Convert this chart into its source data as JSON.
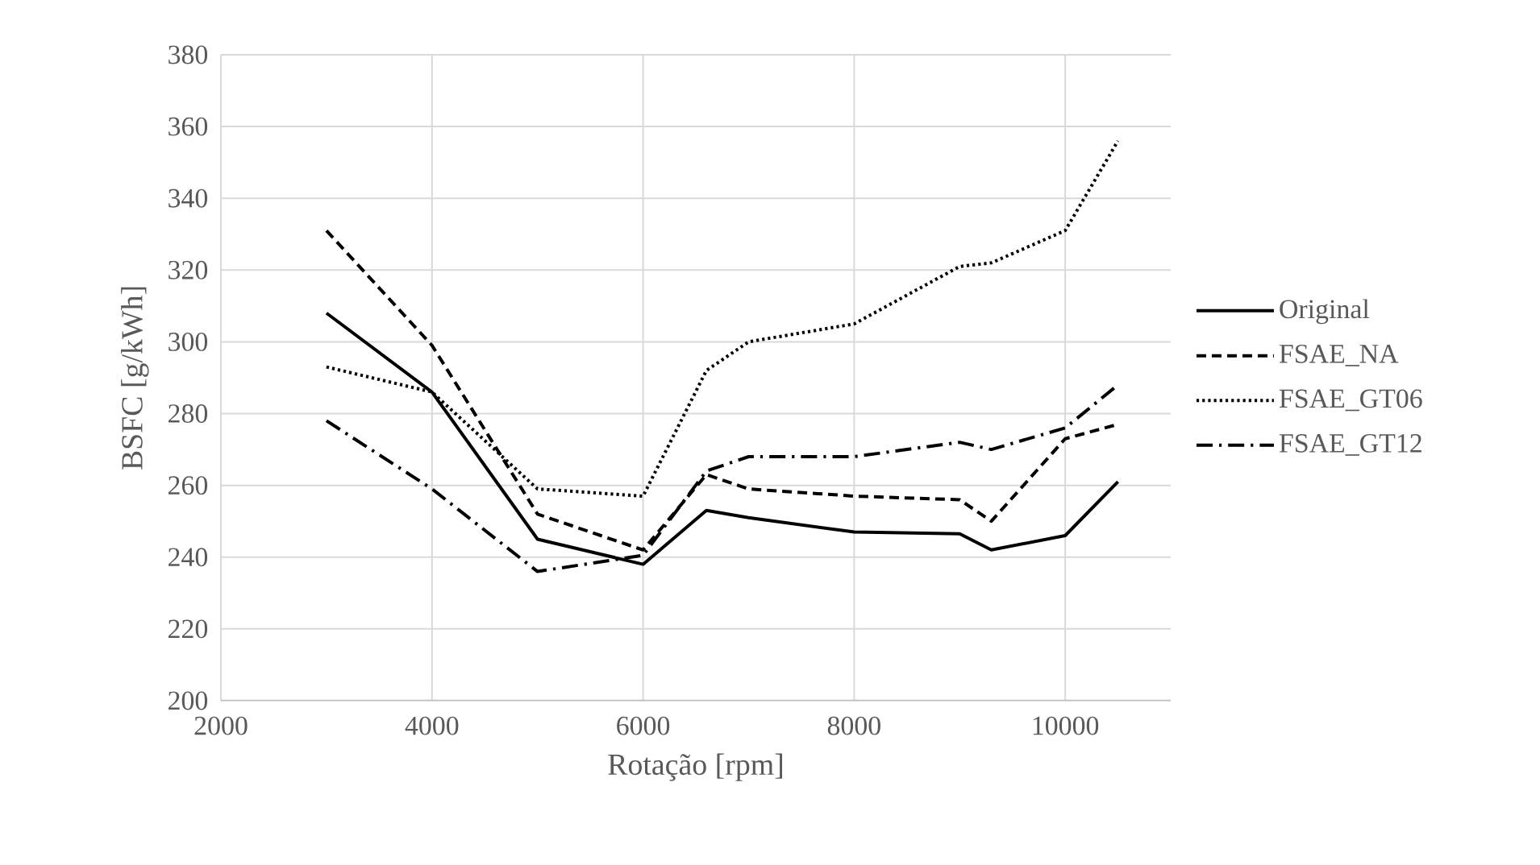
{
  "chart_data": {
    "type": "line",
    "xlabel": "Rotação [rpm]",
    "ylabel": "BSFC [g/kWh]",
    "x": [
      3000,
      4000,
      5000,
      6000,
      6600,
      7000,
      8000,
      9000,
      9300,
      10000,
      10500
    ],
    "series": [
      {
        "name": "Original",
        "color": "#000000",
        "line_style": "solid",
        "values": [
          308,
          286,
          245,
          238,
          253,
          251,
          247,
          246.5,
          242,
          246,
          261
        ]
      },
      {
        "name": "FSAE_NA",
        "color": "#000000",
        "line_style": "dashed",
        "values": [
          331,
          299,
          252,
          242,
          263,
          259,
          257,
          256,
          250,
          273,
          277
        ]
      },
      {
        "name": "FSAE_GT06",
        "color": "#000000",
        "line_style": "dotted",
        "values": [
          293,
          286,
          259,
          257,
          292,
          300,
          305,
          321,
          322,
          331,
          356
        ]
      },
      {
        "name": "FSAE_GT12",
        "color": "#000000",
        "line_style": "dashdot",
        "values": [
          278,
          259,
          236,
          240.5,
          264,
          268,
          268,
          272,
          270,
          276,
          288
        ]
      }
    ],
    "xlim": [
      2000,
      11000
    ],
    "ylim": [
      200,
      380
    ],
    "xticks": [
      2000,
      4000,
      6000,
      8000,
      10000
    ],
    "yticks": [
      200,
      220,
      240,
      260,
      280,
      300,
      320,
      340,
      360,
      380
    ],
    "grid": true,
    "legend": "right",
    "marker": "none"
  }
}
